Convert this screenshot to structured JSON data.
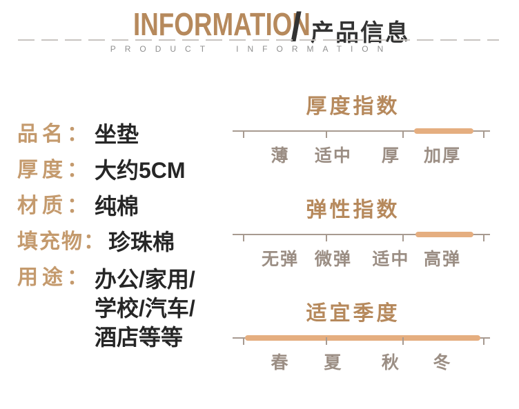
{
  "header": {
    "title_en": "INFORMATION",
    "slash": "/",
    "title_cn": "产品信息",
    "subtitle": "PRODUCT INFORMATION"
  },
  "specs": [
    {
      "label": "品名：",
      "value": "坐垫"
    },
    {
      "label": "厚度：",
      "value": "大约5CM"
    },
    {
      "label": "材质：",
      "value": "纯棉"
    },
    {
      "label": "填充物：",
      "value": "珍珠棉"
    },
    {
      "label": "用途：",
      "value_lines": [
        "办公/家用/",
        "学校/汽车/",
        "酒店等等"
      ]
    }
  ],
  "indexes": [
    {
      "title": "厚度指数",
      "levels": [
        "薄",
        "适中",
        "厚",
        "加厚"
      ],
      "selected": "加厚",
      "highlight": {
        "left_pct": 70.5,
        "width_pct": 23.1
      }
    },
    {
      "title": "弹性指数",
      "levels": [
        "无弹",
        "微弹",
        "适中",
        "高弹"
      ],
      "selected": "高弹",
      "highlight": {
        "left_pct": 71.0,
        "width_pct": 22.5
      }
    },
    {
      "title": "适宜季度",
      "levels": [
        "春",
        "夏",
        "秋",
        "冬"
      ],
      "selected": "春夏秋冬",
      "highlight": {
        "left_pct": 4.8,
        "width_pct": 91.4
      }
    }
  ],
  "colors": {
    "accent_tan": "#b6895c",
    "label_tan": "#c49a6d",
    "capsule": "#e5ae80",
    "line_gray": "#a79a90",
    "scale_label_gray": "#9b8e84",
    "text_dark": "#262626"
  }
}
